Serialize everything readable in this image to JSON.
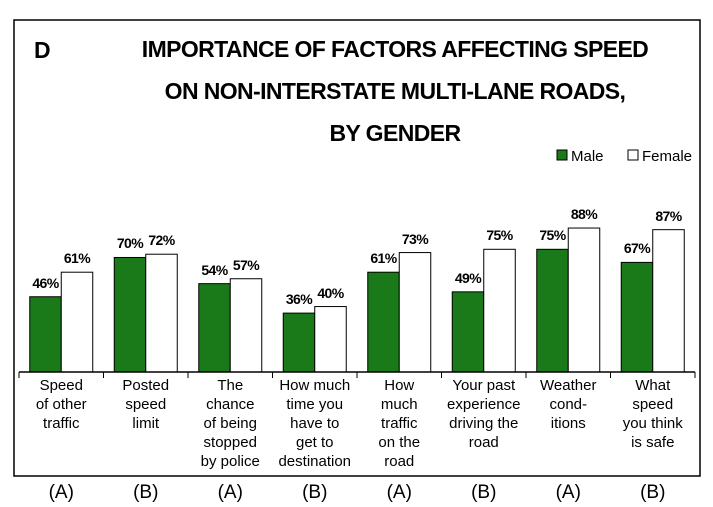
{
  "chart_data": {
    "type": "bar",
    "panel_label": "D",
    "title": "IMPORTANCE OF FACTORS AFFECTING SPEED\nON NON-INTERSTATE MULTI-LANE ROADS,\nBY GENDER",
    "categories": [
      "Speed\nof other\ntraffic",
      "Posted\nspeed\nlimit",
      "The\nchance\nof being\nstopped\nby police",
      "How much\ntime you\nhave to\nget to\ndestination",
      "How\nmuch\ntraffic\non the\nroad",
      "Your past\nexperience\ndriving the\nroad",
      "Weather\ncond-\nitions",
      "What\nspeed\nyou think\nis safe"
    ],
    "category_groups": [
      "(A)",
      "(B)",
      "(A)",
      "(B)",
      "(A)",
      "(B)",
      "(A)",
      "(B)"
    ],
    "series": [
      {
        "name": "Male",
        "color": "#1a7a1a",
        "values": [
          46,
          70,
          54,
          36,
          61,
          49,
          75,
          67
        ],
        "value_labels": [
          "46%",
          "70%",
          "54%",
          "36%",
          "61%",
          "49%",
          "75%",
          "67%"
        ]
      },
      {
        "name": "Female",
        "color": "#ffffff",
        "values": [
          61,
          72,
          57,
          40,
          73,
          75,
          88,
          87
        ],
        "value_labels": [
          "61%",
          "72%",
          "57%",
          "40%",
          "73%",
          "75%",
          "88%",
          "87%"
        ]
      }
    ],
    "ylim": [
      0,
      100
    ],
    "legend": "top-right"
  }
}
